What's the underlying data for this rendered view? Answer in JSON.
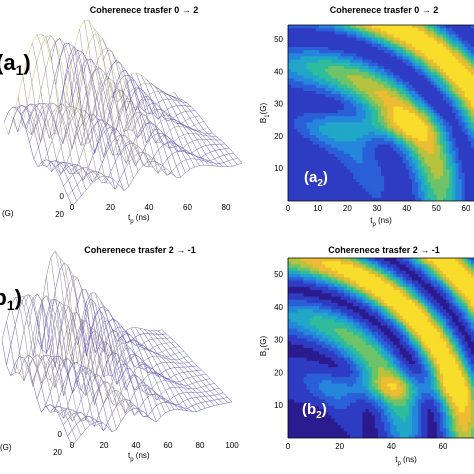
{
  "colors": {
    "contour_scale": [
      "#2b1b8f",
      "#2e3cc4",
      "#2a5fd8",
      "#2487dc",
      "#21a7c7",
      "#2ebc9c",
      "#6cc36a",
      "#b7c33e",
      "#eebb34",
      "#f8dd2a"
    ],
    "mesh_low": "#5e55c6",
    "mesh_high": "#e3d95a"
  },
  "chart_data": [
    {
      "type": "surface",
      "panel_label_main": "a",
      "panel_label_sub": "1",
      "title": "Coherenece trasfer 0 → 2",
      "xlabel": "t",
      "xlabel_sub": "p",
      "xlabel_unit": " (ns)",
      "ylabel": "(G)",
      "x_ticks": [
        "0",
        "20",
        "40",
        "60",
        "80"
      ],
      "y_ticks": [
        "20",
        "0"
      ],
      "xlim": [
        0,
        80
      ]
    },
    {
      "type": "contour",
      "panel_label_main": "a",
      "panel_label_sub": "2",
      "title": "Coherenece trasfer 0 → 2",
      "xlabel": "t",
      "xlabel_sub": "p",
      "xlabel_unit": " (ns)",
      "ylabel": "B",
      "ylabel_sub": "1",
      "ylabel_unit": "(G)",
      "x_ticks": [
        "0",
        "10",
        "20",
        "30",
        "40",
        "50",
        "60"
      ],
      "y_ticks": [
        "10",
        "20",
        "30",
        "40",
        "50"
      ],
      "xlim": [
        0,
        64
      ],
      "ylim": [
        0,
        58
      ]
    },
    {
      "type": "surface",
      "panel_label_main": "b",
      "panel_label_sub": "1",
      "title": "Coherenece trasfer 2 → -1",
      "xlabel": "t",
      "xlabel_sub": "p",
      "xlabel_unit": " (ns)",
      "ylabel": "(G)",
      "x_ticks": [
        "0",
        "20",
        "40",
        "60",
        "80",
        "100"
      ],
      "y_ticks": [
        "20",
        "0"
      ],
      "xlim": [
        0,
        100
      ]
    },
    {
      "type": "contour",
      "panel_label_main": "b",
      "panel_label_sub": "2",
      "title": "Coherenece trasfer 2 → -1",
      "xlabel": "t",
      "xlabel_sub": "p",
      "xlabel_unit": " (ns)",
      "ylabel": "B",
      "ylabel_sub": "1",
      "ylabel_unit": "(G)",
      "x_ticks": [
        "0",
        "20",
        "40",
        "60"
      ],
      "y_ticks": [
        "10",
        "20",
        "30",
        "40",
        "50"
      ],
      "xlim": [
        0,
        68
      ],
      "ylim": [
        0,
        58
      ]
    }
  ]
}
